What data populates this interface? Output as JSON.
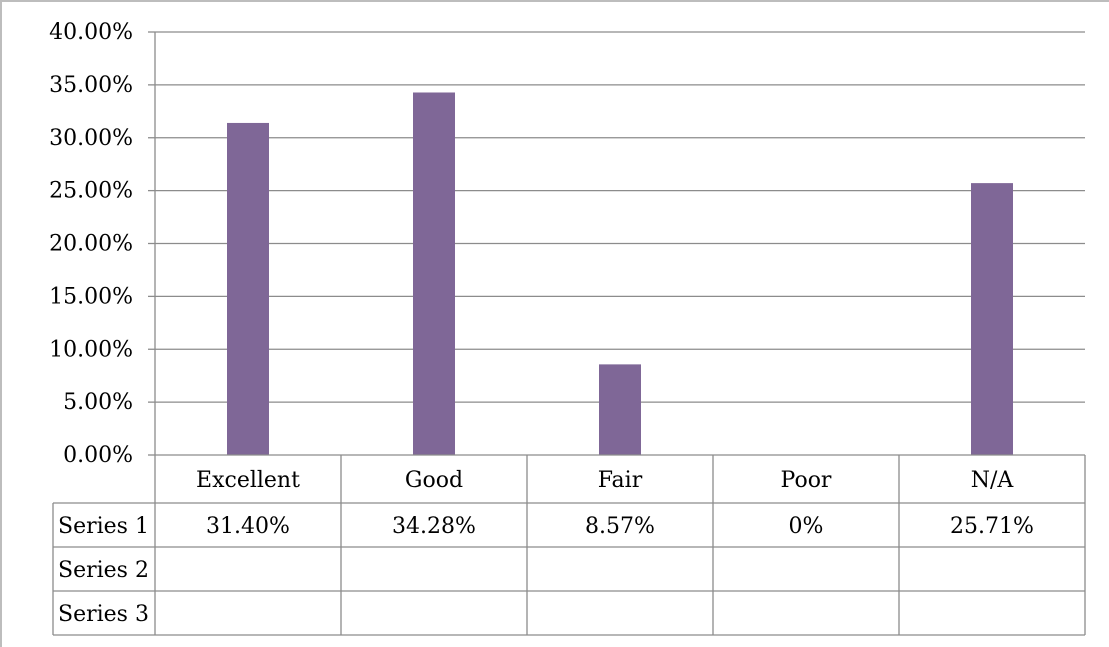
{
  "chart_data": {
    "type": "bar",
    "categories": [
      "Excellent",
      "Good",
      "Fair",
      "Poor",
      "N/A"
    ],
    "series": [
      {
        "name": "Series 1",
        "values": [
          31.4,
          34.28,
          8.57,
          0,
          25.71
        ],
        "labels": [
          "31.40%",
          "34.28%",
          "8.57%",
          "0%",
          "25.71%"
        ]
      },
      {
        "name": "Series 2",
        "values": [
          null,
          null,
          null,
          null,
          null
        ],
        "labels": [
          "",
          "",
          "",
          "",
          ""
        ]
      },
      {
        "name": "Series 3",
        "values": [
          null,
          null,
          null,
          null,
          null
        ],
        "labels": [
          "",
          "",
          "",
          "",
          ""
        ]
      }
    ],
    "ylim": [
      0,
      40
    ],
    "y_ticks": [
      "0.00%",
      "5.00%",
      "10.00%",
      "15.00%",
      "20.00%",
      "25.00%",
      "30.00%",
      "35.00%",
      "40.00%"
    ],
    "grid": true,
    "legend": "data-table",
    "colors": {
      "series_1": "#7F6797",
      "grid": "#8c8c8c"
    }
  }
}
